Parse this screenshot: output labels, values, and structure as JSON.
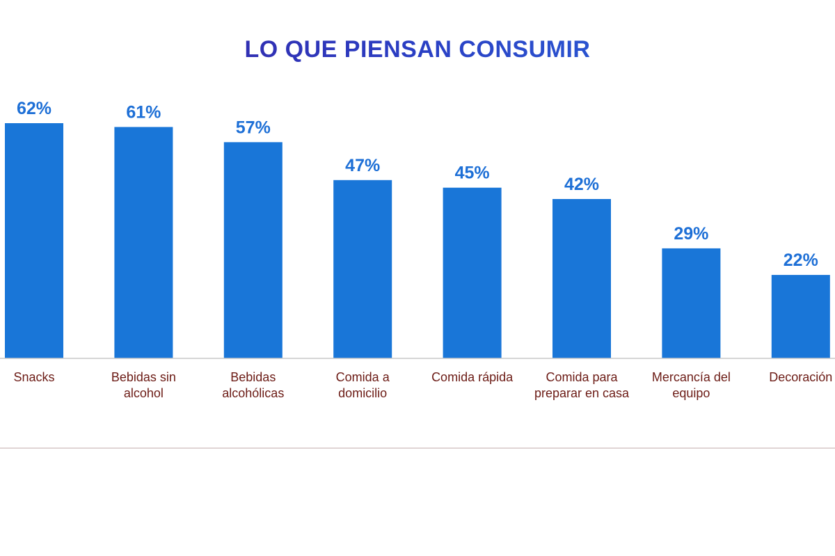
{
  "chart_data": {
    "type": "bar",
    "title": "LO QUE PIENSAN CONSUMIR",
    "categories": [
      [
        "Snacks"
      ],
      [
        "Bebidas sin",
        "alcohol"
      ],
      [
        "Bebidas",
        "alcohólicas"
      ],
      [
        "Comida a",
        "domicilio"
      ],
      [
        "Comida rápida"
      ],
      [
        "Comida para",
        "preparar en casa"
      ],
      [
        "Mercancía del",
        "equipo"
      ],
      [
        "Decoración"
      ]
    ],
    "values": [
      62,
      61,
      57,
      47,
      45,
      42,
      29,
      22
    ],
    "value_labels": [
      "62%",
      "61%",
      "57%",
      "47%",
      "45%",
      "42%",
      "29%",
      "22%"
    ],
    "ylim": [
      0,
      62
    ],
    "grid": false,
    "colors": {
      "bar": "#1976d8",
      "value_label": "#1d6fd6",
      "category_label": "#6b1a14",
      "axis": "#c9c9c9"
    }
  }
}
